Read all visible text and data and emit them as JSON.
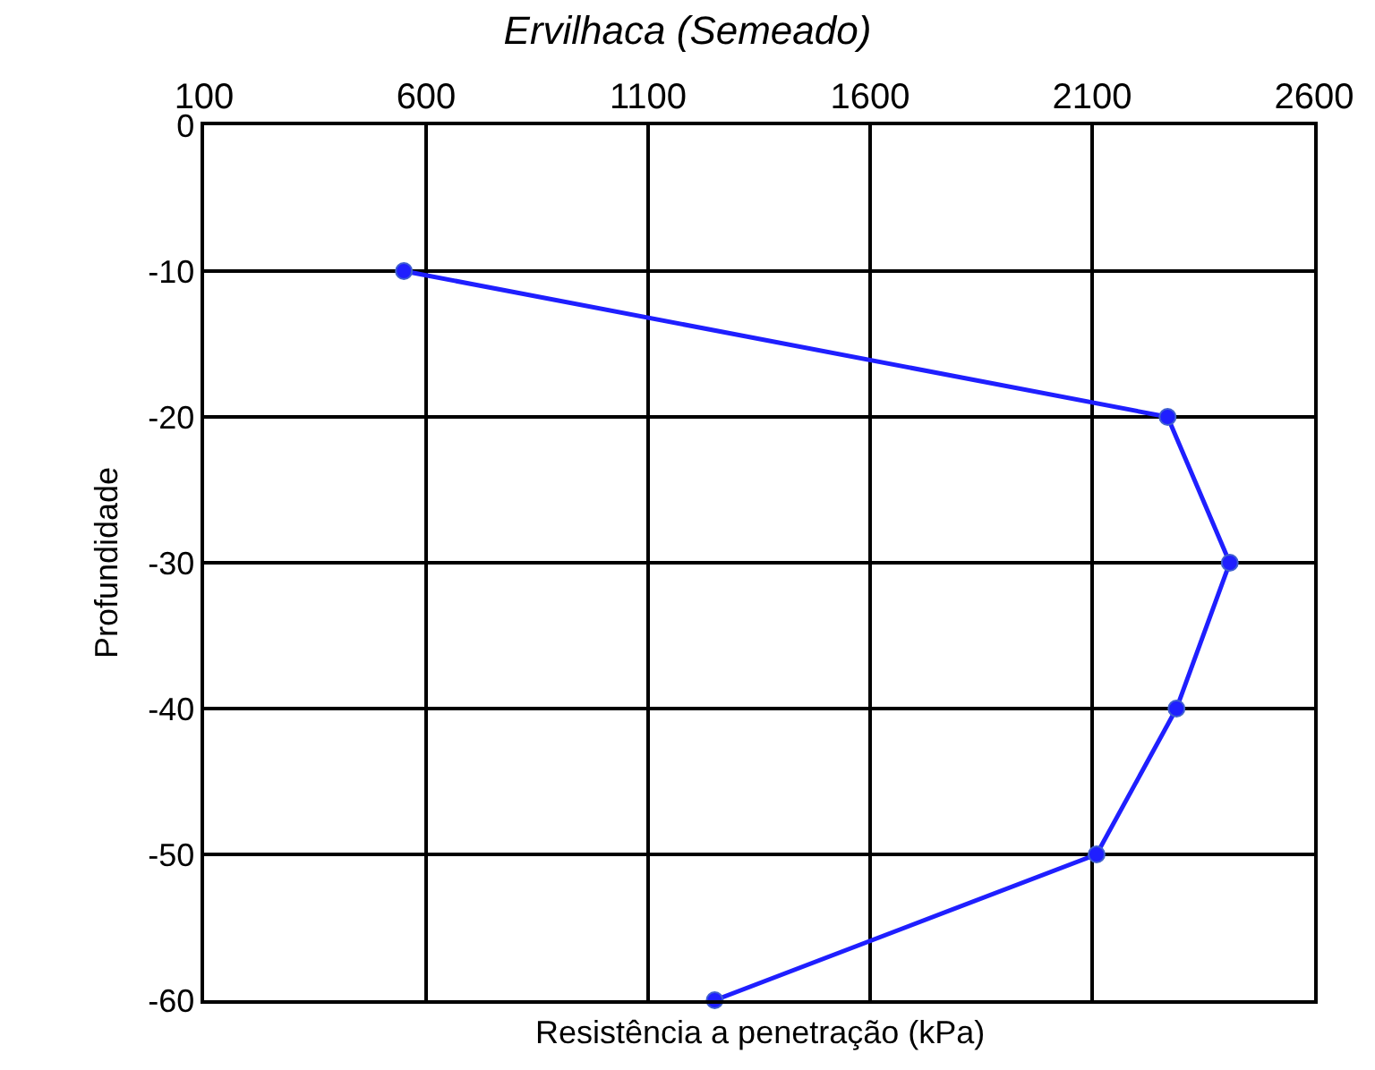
{
  "chart_data": {
    "type": "line",
    "title": "Ervilhaca (Semeado)",
    "xlabel": "Resistência a penetração (kPa)",
    "ylabel": "Profundidade",
    "series": [
      {
        "color": "#1f1fff",
        "x": [
          550,
          2270,
          2410,
          2290,
          2110,
          1250
        ],
        "values": [
          -10,
          -20,
          -30,
          -40,
          -50,
          -60
        ]
      }
    ],
    "xlim": [
      100,
      2600
    ],
    "xticks": [
      100,
      600,
      1100,
      1600,
      2100,
      2600
    ],
    "ylim": [
      -60,
      0
    ],
    "yticks": [
      0,
      -10,
      -20,
      -30,
      -40,
      -50,
      -60
    ],
    "grid": true,
    "marker": "circle",
    "line_style": "solid",
    "legend": false
  }
}
